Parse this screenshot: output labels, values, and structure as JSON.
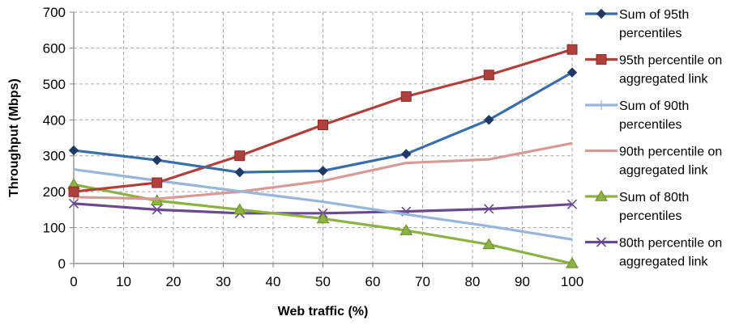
{
  "chart_data": {
    "type": "line",
    "xlabel": "Web traffic (%)",
    "ylabel": "Throughput (Mbps)",
    "xlim": [
      0,
      100
    ],
    "ylim": [
      0,
      700
    ],
    "xticks": [
      0,
      10,
      20,
      30,
      40,
      50,
      60,
      70,
      80,
      90,
      100
    ],
    "yticks": [
      0,
      100,
      200,
      300,
      400,
      500,
      600,
      700
    ],
    "grid": true,
    "legend": "right",
    "x": [
      0,
      16.7,
      33.3,
      50,
      66.7,
      83.3,
      100
    ],
    "series": [
      {
        "name": "Sum of 95th percentiles",
        "name_lines": [
          "Sum of 95th",
          "percentiles"
        ],
        "color": "#3b6ea8",
        "marker": "diamond",
        "markers_on_points": true,
        "values": [
          315,
          288,
          254,
          258,
          305,
          400,
          532
        ]
      },
      {
        "name": "95th percentile on aggregated link",
        "name_lines": [
          "95th percentile on",
          "aggregated link"
        ],
        "color": "#b0403c",
        "marker": "square",
        "markers_on_points": true,
        "values": [
          200,
          225,
          300,
          386,
          465,
          525,
          596
        ]
      },
      {
        "name": "Sum of 90th percentiles",
        "name_lines": [
          "Sum of 90th",
          "percentiles"
        ],
        "color": "#98b5da",
        "marker": "plus",
        "markers_on_points": false,
        "values": [
          262,
          231,
          201,
          172,
          137,
          104,
          67
        ]
      },
      {
        "name": "90th percentile on aggregated link",
        "name_lines": [
          "90th percentile on",
          "aggregated link"
        ],
        "color": "#d89a98",
        "marker": "none",
        "markers_on_points": false,
        "values": [
          185,
          180,
          200,
          230,
          280,
          290,
          335
        ]
      },
      {
        "name": "Sum of 80th percentiles",
        "name_lines": [
          "Sum of 80th",
          "percentiles"
        ],
        "color": "#8db142",
        "marker": "triangle",
        "markers_on_points": true,
        "values": [
          220,
          175,
          150,
          125,
          92,
          53,
          0
        ]
      },
      {
        "name": "80th percentile on aggregated link",
        "name_lines": [
          "80th percentile on",
          "aggregated link"
        ],
        "color": "#6a4a8e",
        "marker": "x",
        "markers_on_points": true,
        "values": [
          167,
          150,
          140,
          140,
          145,
          152,
          165
        ]
      }
    ]
  }
}
